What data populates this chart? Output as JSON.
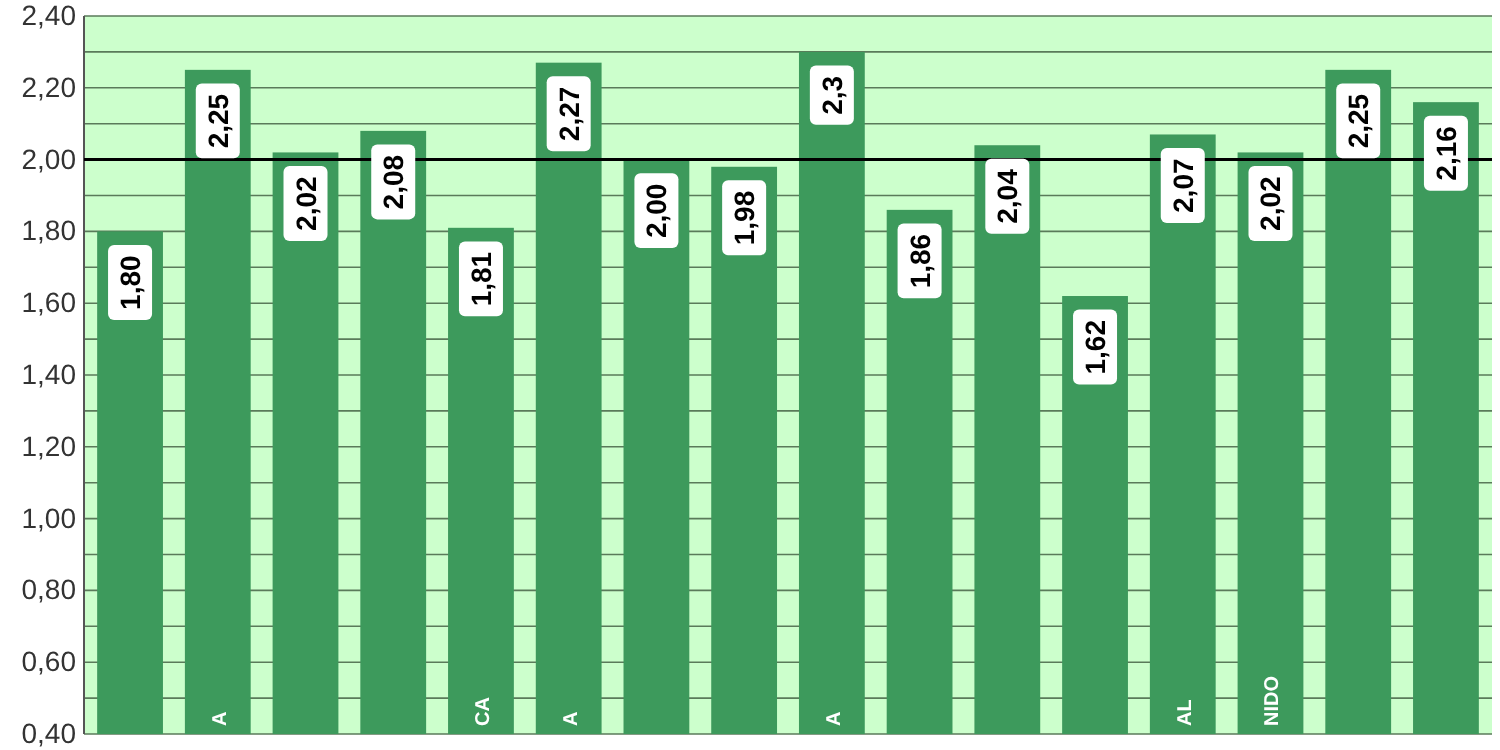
{
  "chart_data": {
    "type": "bar",
    "categories": [
      null,
      "A",
      null,
      null,
      "CA",
      "A",
      null,
      null,
      "A",
      null,
      null,
      null,
      "AL",
      "NIDO",
      null,
      null
    ],
    "values": [
      1.8,
      2.25,
      2.02,
      2.08,
      1.81,
      2.27,
      2.0,
      1.98,
      2.3,
      1.86,
      2.04,
      1.62,
      2.07,
      2.02,
      2.25,
      2.16
    ],
    "value_labels": [
      "1,80",
      "2,25",
      "2,02",
      "2,08",
      "1,81",
      "2,27",
      "2,00",
      "1,98",
      "2,3",
      "1,86",
      "2,04",
      "1,62",
      "2,07",
      "2,02",
      "2,25",
      "2,16"
    ],
    "color": "#3d9a5c",
    "ylim": [
      0.4,
      2.4
    ],
    "yticks": [
      {
        "value": 0.4,
        "label": "0,40"
      },
      {
        "value": 0.5,
        "label": null
      },
      {
        "value": 0.6,
        "label": "0,60"
      },
      {
        "value": 0.7,
        "label": null
      },
      {
        "value": 0.8,
        "label": "0,80"
      },
      {
        "value": 0.9,
        "label": null
      },
      {
        "value": 1.0,
        "label": "1,00"
      },
      {
        "value": 1.1,
        "label": null
      },
      {
        "value": 1.2,
        "label": "1,20"
      },
      {
        "value": 1.3,
        "label": null
      },
      {
        "value": 1.4,
        "label": "1,40"
      },
      {
        "value": 1.5,
        "label": null
      },
      {
        "value": 1.6,
        "label": "1,60"
      },
      {
        "value": 1.7,
        "label": null
      },
      {
        "value": 1.8,
        "label": "1,80"
      },
      {
        "value": 1.9,
        "label": null
      },
      {
        "value": 2.0,
        "label": "2,00"
      },
      {
        "value": 2.1,
        "label": null
      },
      {
        "value": 2.2,
        "label": "2,20"
      },
      {
        "value": 2.3,
        "label": null
      },
      {
        "value": 2.4,
        "label": "2,40"
      }
    ],
    "grid": "y",
    "ref_lines": [
      {
        "axis": "y",
        "value": 2.0,
        "color": "#000000"
      }
    ]
  }
}
